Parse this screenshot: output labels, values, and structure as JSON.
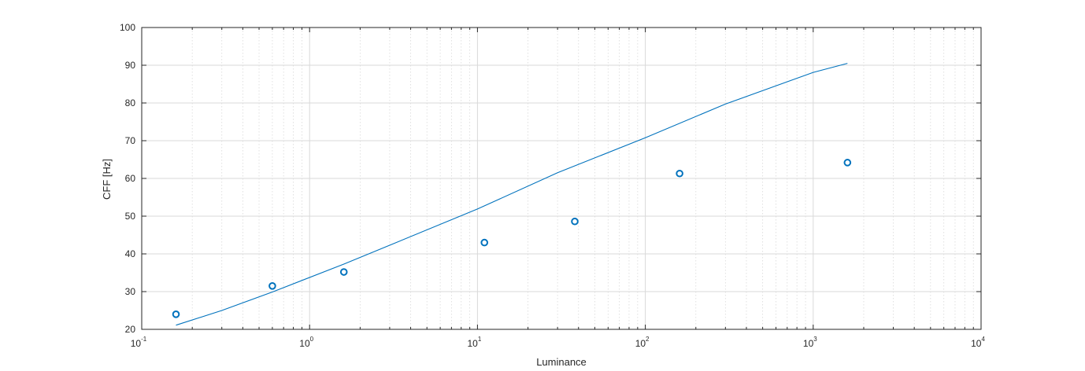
{
  "chart_data": {
    "type": "scatter",
    "title": "",
    "xlabel": "Luminance",
    "ylabel": "CFF [Hz]",
    "xscale": "log",
    "xlim": [
      0.1,
      10000
    ],
    "ylim": [
      20,
      100
    ],
    "grid": true,
    "legend": "none",
    "x_ticks": [
      {
        "value": 0.1,
        "base": "10",
        "exp": "-1"
      },
      {
        "value": 1,
        "base": "10",
        "exp": "0"
      },
      {
        "value": 10,
        "base": "10",
        "exp": "1"
      },
      {
        "value": 100,
        "base": "10",
        "exp": "2"
      },
      {
        "value": 1000,
        "base": "10",
        "exp": "3"
      },
      {
        "value": 10000,
        "base": "10",
        "exp": "4"
      }
    ],
    "y_ticks": [
      "20",
      "30",
      "40",
      "50",
      "60",
      "70",
      "80",
      "90",
      "100"
    ],
    "colors": {
      "series": "#0072BD",
      "grid": "#d9d9d9",
      "axis": "#262626"
    },
    "series": [
      {
        "kind": "line",
        "x": [
          0.16,
          0.3,
          0.6,
          1.6,
          3,
          10,
          30,
          100,
          300,
          1000,
          1600
        ],
        "y": [
          21.1,
          25.0,
          29.9,
          37.3,
          42.3,
          51.9,
          61.5,
          70.8,
          79.7,
          88.1,
          90.5
        ]
      },
      {
        "kind": "scatter",
        "marker": "circle-open",
        "x": [
          0.16,
          0.6,
          1.6,
          11,
          38,
          160,
          1600
        ],
        "y": [
          24,
          31.5,
          35.2,
          43,
          48.6,
          61.3,
          64.2
        ]
      }
    ]
  }
}
